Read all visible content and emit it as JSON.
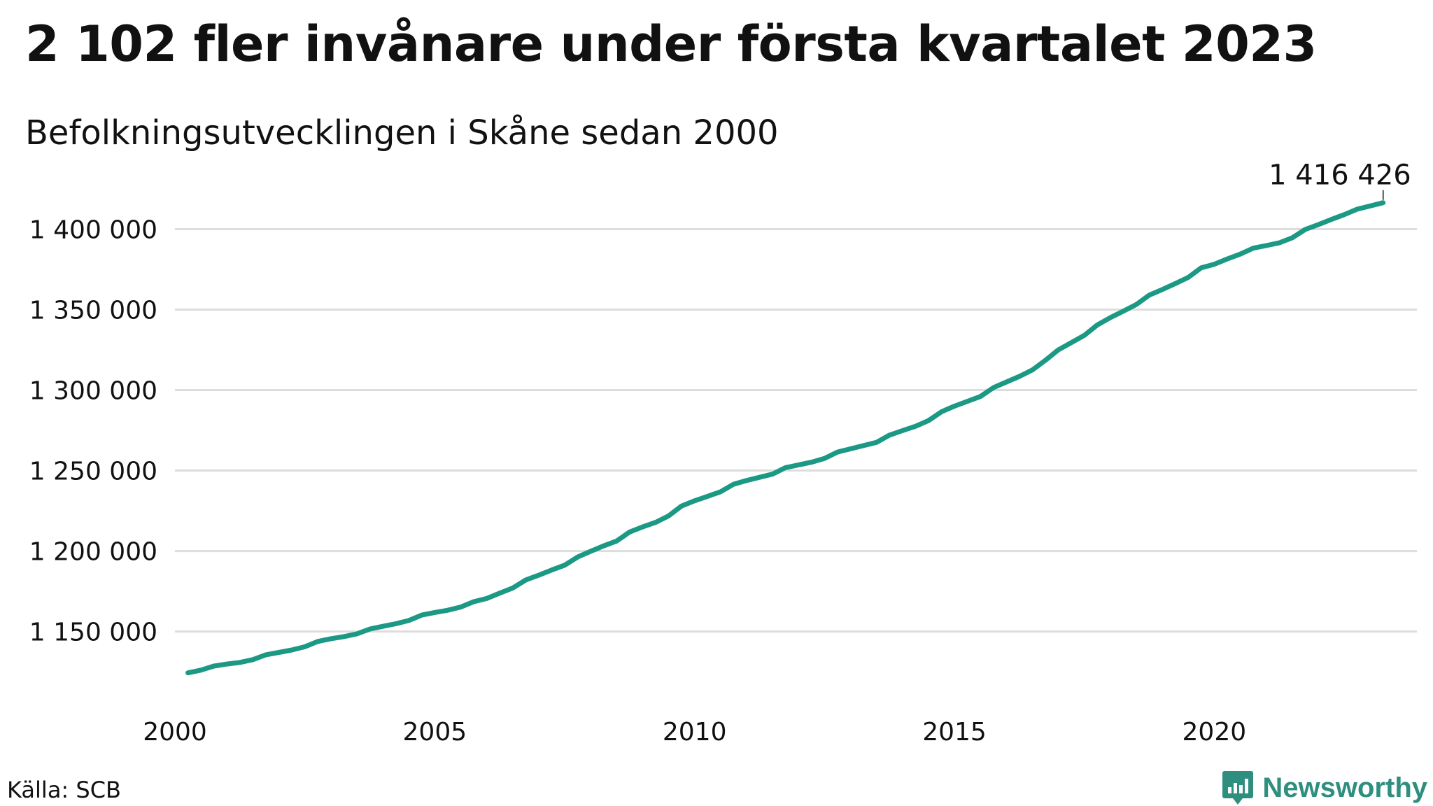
{
  "title": "2 102 fler invånare under första kvartalet 2023",
  "subtitle": "Befolkningsutvecklingen i Skåne sedan 2000",
  "source": "Källa: SCB",
  "brand": {
    "name": "Newsworthy",
    "logo_icon": "bar-chart-pin-icon",
    "color": "#2f8f7f"
  },
  "colors": {
    "line": "#1b9985",
    "grid": "#dddddd",
    "text": "#111111"
  },
  "chart_data": {
    "type": "line",
    "title": "2 102 fler invånare under första kvartalet 2023",
    "subtitle": "Befolkningsutvecklingen i Skåne sedan 2000",
    "xlabel": "",
    "ylabel": "",
    "xlim": [
      2000,
      2023.9
    ],
    "ylim": [
      1112000,
      1425000
    ],
    "grid": "horizontal",
    "legend": "none",
    "x_ticks": [
      2000,
      2005,
      2010,
      2015,
      2020
    ],
    "x_tick_labels": [
      "2000",
      "2005",
      "2010",
      "2015",
      "2020"
    ],
    "y_ticks": [
      1150000,
      1200000,
      1250000,
      1300000,
      1350000,
      1400000
    ],
    "y_tick_labels": [
      "1 150 000",
      "1 200 000",
      "1 250 000",
      "1 300 000",
      "1 350 000",
      "1 400 000"
    ],
    "end_label": "1 416 426",
    "series": [
      {
        "x": [
          2000.25,
          2000.5,
          2000.75,
          2001.0,
          2001.25,
          2001.5,
          2001.75,
          2002.0,
          2002.25,
          2002.5,
          2002.75,
          2003.0,
          2003.25,
          2003.5,
          2003.75,
          2004.0,
          2004.25,
          2004.5,
          2004.75,
          2005.0,
          2005.25,
          2005.5,
          2005.75,
          2006.0,
          2006.25,
          2006.5,
          2006.75,
          2007.0,
          2007.25,
          2007.5,
          2007.75,
          2008.0,
          2008.25,
          2008.5,
          2008.75,
          2009.0,
          2009.25,
          2009.5,
          2009.75,
          2010.0,
          2010.25,
          2010.5,
          2010.75,
          2011.0,
          2011.25,
          2011.5,
          2011.75,
          2012.0,
          2012.25,
          2012.5,
          2012.75,
          2013.0,
          2013.25,
          2013.5,
          2013.75,
          2014.0,
          2014.25,
          2014.5,
          2014.75,
          2015.0,
          2015.25,
          2015.5,
          2015.75,
          2016.0,
          2016.25,
          2016.5,
          2016.75,
          2017.0,
          2017.25,
          2017.5,
          2017.75,
          2018.0,
          2018.25,
          2018.5,
          2018.75,
          2019.0,
          2019.25,
          2019.5,
          2019.75,
          2020.0,
          2020.25,
          2020.5,
          2020.75,
          2021.0,
          2021.25,
          2021.5,
          2021.75,
          2022.0,
          2022.25,
          2022.5,
          2022.75,
          2023.0,
          2023.25
        ],
        "values": [
          1124300,
          1126000,
          1128500,
          1129800,
          1130800,
          1132500,
          1135500,
          1137000,
          1138500,
          1140500,
          1143800,
          1145500,
          1146800,
          1148500,
          1151500,
          1153200,
          1154800,
          1156800,
          1160200,
          1161800,
          1163200,
          1165200,
          1168500,
          1170500,
          1173800,
          1177000,
          1182000,
          1185000,
          1188200,
          1191200,
          1196300,
          1199800,
          1203200,
          1206200,
          1211800,
          1215000,
          1217800,
          1221800,
          1228000,
          1231200,
          1234000,
          1236800,
          1241500,
          1243800,
          1245800,
          1247800,
          1251800,
          1253500,
          1255200,
          1257500,
          1261500,
          1263500,
          1265500,
          1267500,
          1272000,
          1274800,
          1277500,
          1281000,
          1286500,
          1290000,
          1293000,
          1296000,
          1301500,
          1305000,
          1308500,
          1312500,
          1318500,
          1325000,
          1329500,
          1334000,
          1340500,
          1345000,
          1349000,
          1353200,
          1359000,
          1362500,
          1366200,
          1370000,
          1376000,
          1378200,
          1381500,
          1384500,
          1388200,
          1389800,
          1391500,
          1394600,
          1399800,
          1402800,
          1406000,
          1409000,
          1412400,
          1414400,
          1416426
        ]
      }
    ]
  }
}
